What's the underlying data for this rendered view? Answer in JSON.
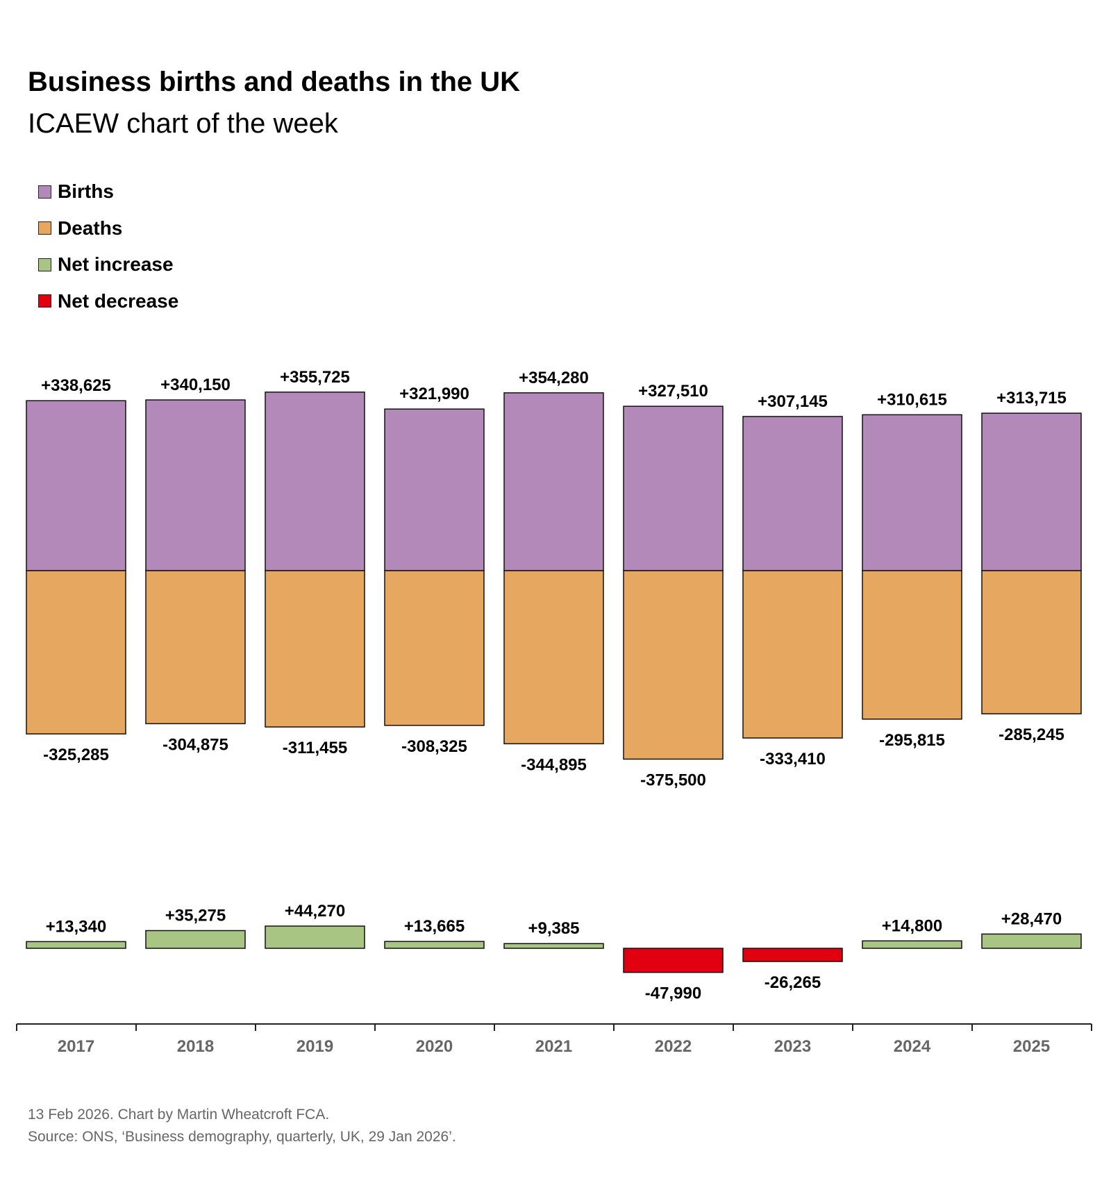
{
  "title": "Business births and deaths in the UK",
  "subtitle": "ICAEW chart of the week",
  "footer": {
    "line1": "13 Feb 2026.   Chart by Martin Wheatcroft FCA.",
    "line2": "Source: ONS, ‘Business demography, quarterly, UK, 29 Jan 2026’."
  },
  "legend": [
    {
      "label": "Births",
      "color": "#B389B9"
    },
    {
      "label": "Deaths",
      "color": "#E6A760"
    },
    {
      "label": "Net increase",
      "color": "#A9C583"
    },
    {
      "label": "Net decrease",
      "color": "#E0000F"
    }
  ],
  "chart_data": {
    "type": "bar",
    "categories": [
      "2017",
      "2018",
      "2019",
      "2020",
      "2021",
      "2022",
      "2023",
      "2024",
      "2025"
    ],
    "series": [
      {
        "name": "Births",
        "values": [
          338625,
          340150,
          355725,
          321990,
          354280,
          327510,
          307145,
          310615,
          313715
        ],
        "labels": [
          "+338,625",
          "+340,150",
          "+355,725",
          "+321,990",
          "+354,280",
          "+327,510",
          "+307,145",
          "+310,615",
          "+313,715"
        ]
      },
      {
        "name": "Deaths",
        "values": [
          -325285,
          -304875,
          -311455,
          -308325,
          -344895,
          -375500,
          -333410,
          -295815,
          -285245
        ],
        "labels": [
          "-325,285",
          "-304,875",
          "-311,455",
          "-308,325",
          "-344,895",
          "-375,500",
          "-333,410",
          "-295,815",
          "-285,245"
        ]
      },
      {
        "name": "Net",
        "values": [
          13340,
          35275,
          44270,
          13665,
          9385,
          -47990,
          -26265,
          14800,
          28470
        ],
        "labels": [
          "+13,340",
          "+35,275",
          "+44,270",
          "+13,665",
          "+9,385",
          "-47,990",
          "-26,265",
          "+14,800",
          "+28,470"
        ]
      }
    ],
    "grid": false
  }
}
